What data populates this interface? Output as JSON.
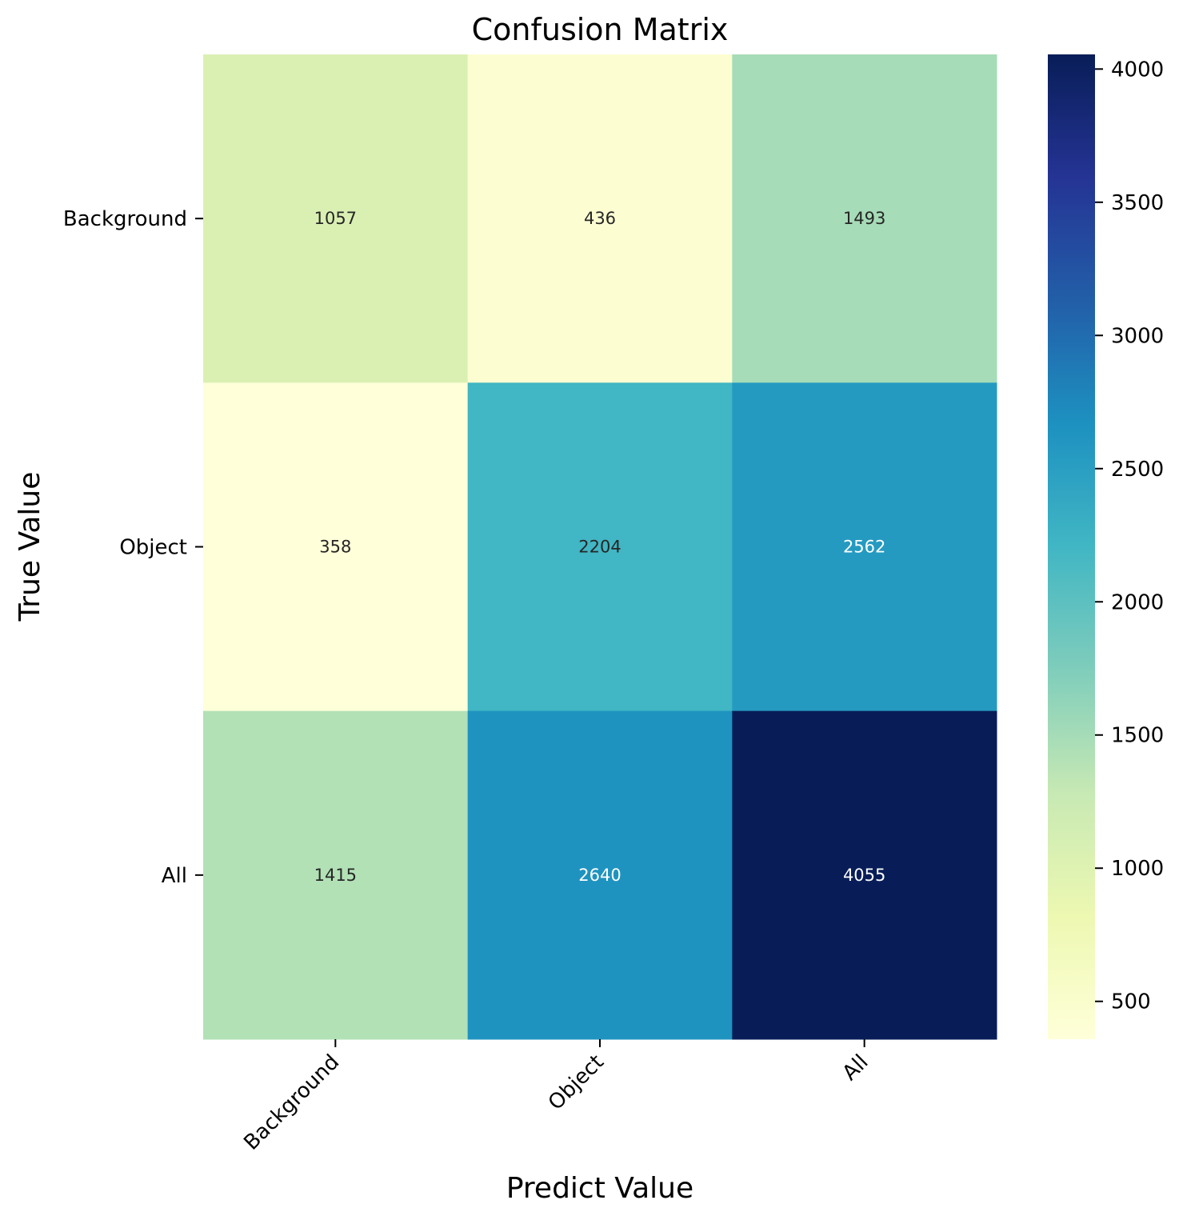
{
  "chart_data": {
    "type": "heatmap",
    "title": "Confusion Matrix",
    "xlabel": "Predict Value",
    "ylabel": "True Value",
    "x_categories": [
      "Background",
      "Object",
      "All"
    ],
    "y_categories": [
      "Background",
      "Object",
      "All"
    ],
    "values": [
      [
        1057,
        436,
        1493
      ],
      [
        358,
        2204,
        2562
      ],
      [
        1415,
        2640,
        4055
      ]
    ],
    "colorbar": {
      "colormap": "YlGnBu",
      "range": [
        358,
        4055
      ],
      "ticks": [
        500,
        1000,
        1500,
        2000,
        2500,
        3000,
        3500,
        4000
      ]
    },
    "grid": false
  }
}
